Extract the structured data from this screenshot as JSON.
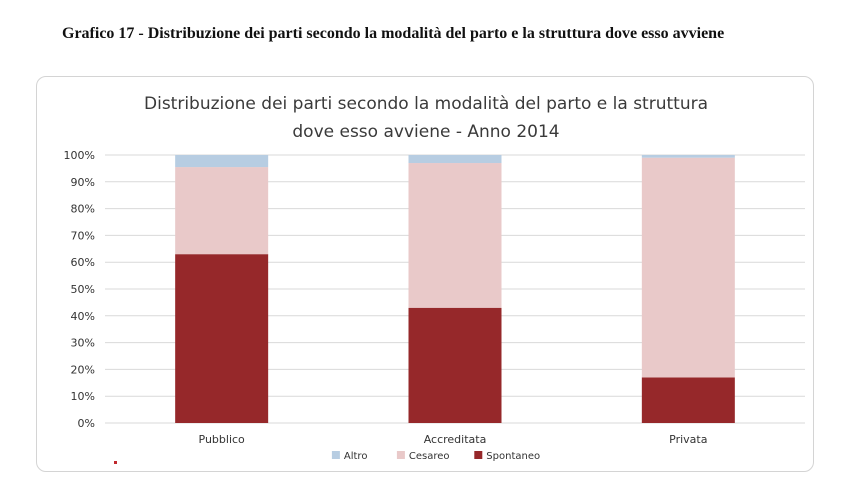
{
  "doc_caption": "Grafico 17 - Distribuzione dei parti secondo la modalità del parto e la struttura dove esso avviene",
  "chart_data": {
    "type": "bar",
    "stacked": true,
    "title_lines": [
      "Distribuzione dei parti secondo la modalità del parto e la struttura",
      "dove esso avviene - Anno 2014"
    ],
    "categories": [
      "Pubblico",
      "Accreditata",
      "Privata"
    ],
    "series": [
      {
        "name": "Spontaneo",
        "color": "#96282a",
        "values": [
          63,
          43,
          17
        ]
      },
      {
        "name": "Cesareo",
        "color": "#e9c9c9",
        "values": [
          32.5,
          54,
          82
        ]
      },
      {
        "name": "Altro",
        "color": "#b7cde2",
        "values": [
          4.5,
          3,
          1
        ]
      }
    ],
    "legend_order": [
      "Altro",
      "Cesareo",
      "Spontaneo"
    ],
    "legend_position": "bottom",
    "y_ticks": [
      "0%",
      "10%",
      "20%",
      "30%",
      "40%",
      "50%",
      "60%",
      "70%",
      "80%",
      "90%",
      "100%"
    ],
    "ylim": [
      0,
      100
    ],
    "grid": true,
    "xlabel": "",
    "ylabel": ""
  }
}
